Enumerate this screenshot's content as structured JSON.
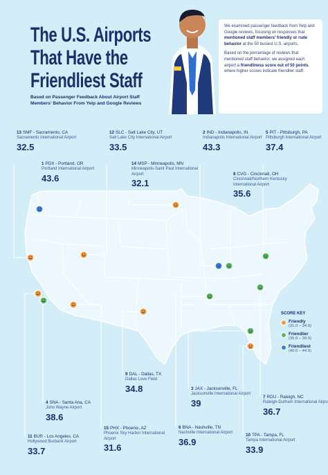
{
  "header": {
    "title_lines": [
      "The U.S. Airports",
      "That Have the",
      "Friendliest Staff"
    ],
    "subtitle": "Based on Passenger Feedback About Airport Staff Members' Behavior From Yelp and Google Reviews",
    "intro": [
      [
        "We examined passenger feedback from Yelp and Google reviews, focusing on responses that ",
        {
          "text": "mentioned staff members' friendly or rude behavior",
          "bold": true
        },
        " at the 50 busiest U.S. airports."
      ],
      [
        "Based on the percentage of reviews that mentioned staff behavior, we assigned each airport a ",
        {
          "text": "friendliness score out of 50 points",
          "bold": true
        },
        ", where higher scores indicate friendlier staff."
      ]
    ]
  },
  "score_key": {
    "title": "SCORE KEY",
    "items": [
      {
        "name": "Friendly",
        "range": "(31.0 – 34.9)",
        "color": "#f39a3c"
      },
      {
        "name": "Friendlier",
        "range": "(35.0 – 39.9)",
        "color": "#5cb85c"
      },
      {
        "name": "Friendliest",
        "range": "(40.0 – 44.9)",
        "color": "#3b82d6"
      }
    ]
  },
  "airports": [
    {
      "rank": 13,
      "label": "SMF - Sacramento, CA",
      "name": "Sacramento International Airport",
      "score": 32.5,
      "color": "#f39a3c"
    },
    {
      "rank": 1,
      "label": "PDX - Portland, OR",
      "name": "Portland International Airport",
      "score": 43.6,
      "color": "#3b82d6"
    },
    {
      "rank": 12,
      "label": "SLC - Salt Lake City, UT",
      "name": "Salt Lake City International Airport",
      "score": 33.5,
      "color": "#f39a3c"
    },
    {
      "rank": 14,
      "label": "MSP - Minneapolis, MN",
      "name": "Minneapolis-Saint Paul International Airport",
      "score": 32.1,
      "color": "#f39a3c"
    },
    {
      "rank": 2,
      "label": "IND - Indianapolis, IN",
      "name": "Indianapolis International Airport",
      "score": 43.3,
      "color": "#3b82d6"
    },
    {
      "rank": 5,
      "label": "PIT - Pittsburgh, PA",
      "name": "Pittsburgh International Airport",
      "score": 37.4,
      "color": "#5cb85c"
    },
    {
      "rank": 8,
      "label": "CVG - Cincinnati, OH",
      "name": "Cincinnati/Northern Kentucky International Airport",
      "score": 35.6,
      "color": "#5cb85c"
    },
    {
      "rank": 11,
      "label": "BUR - Los Angeles, CA",
      "name": "Hollywood Burbank Airport",
      "score": 33.7,
      "color": "#f39a3c"
    },
    {
      "rank": 4,
      "label": "SNA - Santa Ana, CA",
      "name": "John Wayne Airport",
      "score": 38.6,
      "color": "#5cb85c"
    },
    {
      "rank": 9,
      "label": "DAL - Dallas, TX",
      "name": "Dallas Love Field",
      "score": 34.8,
      "color": "#f39a3c"
    },
    {
      "rank": 15,
      "label": "PHX - Phoenix, AZ",
      "name": "Phoenix Sky Harbor International Airport",
      "score": 31.6,
      "color": "#f39a3c"
    },
    {
      "rank": 3,
      "label": "JAX - Jacksonville, FL",
      "name": "Jacksonville International Airport",
      "score": 39.0,
      "color": "#5cb85c"
    },
    {
      "rank": 6,
      "label": "BNA - Nashville, TN",
      "name": "Nashville International Airport",
      "score": 36.9,
      "color": "#5cb85c"
    },
    {
      "rank": 7,
      "label": "RDU - Raleigh, NC",
      "name": "Raleigh-Durham International Airport",
      "score": 36.7,
      "color": "#5cb85c"
    },
    {
      "rank": 10,
      "label": "TPA - Tampa, FL",
      "name": "Tampa International Airport",
      "score": 33.9,
      "color": "#f39a3c"
    }
  ]
}
